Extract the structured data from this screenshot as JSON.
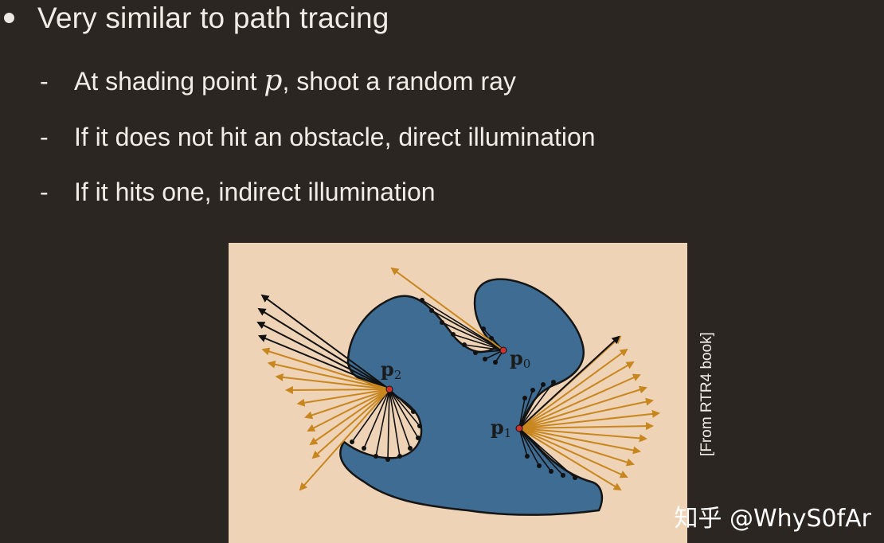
{
  "slide": {
    "bullet": "Very similar to path tracing",
    "sub_items": [
      {
        "before": "At shading point ",
        "math": "p",
        "after": ", shoot a random ray"
      },
      {
        "before": "If it does not hit an obstacle, direct illumination",
        "math": "",
        "after": ""
      },
      {
        "before": "If it hits one, indirect illumination",
        "math": "",
        "after": ""
      }
    ],
    "dash": "-"
  },
  "figure": {
    "labels": {
      "p0_main": "p",
      "p0_sub": "0",
      "p1_main": "p",
      "p1_sub": "1",
      "p2_main": "p",
      "p2_sub": "2"
    },
    "caption": "[From RTR4 book]",
    "colors": {
      "background": "#efd3b6",
      "object": "#3e6c92",
      "object_stroke": "#151515",
      "direct_ray": "#c8861f",
      "blocked_ray": "#111111",
      "point": "#d0312d"
    }
  },
  "watermark": "知乎 @WhyS0fAr"
}
